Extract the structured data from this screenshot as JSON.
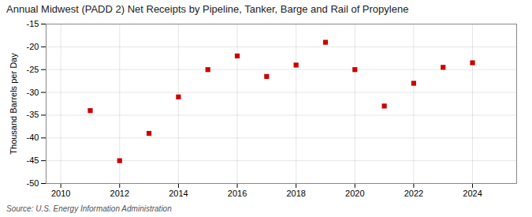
{
  "chart_data": {
    "type": "scatter",
    "title": "Annual Midwest (PADD 2) Net Receipts by Pipeline, Tanker, Barge and Rail of Propylene",
    "ylabel": "Thousand Barrels per Day",
    "annotations": [
      "Source: U.S. Energy Information Administration"
    ],
    "x": [
      2011,
      2012,
      2013,
      2014,
      2015,
      2016,
      2017,
      2018,
      2019,
      2020,
      2021,
      2022,
      2023,
      2024
    ],
    "values": [
      -34.0,
      -45.0,
      -39.0,
      -31.0,
      -25.0,
      -22.0,
      -26.5,
      -24.0,
      -19.0,
      -25.0,
      -33.0,
      -28.0,
      -24.5,
      -23.5
    ],
    "color": "#cc0000",
    "marker": "square",
    "xlim": [
      2009.5,
      2025.5
    ],
    "xticks": [
      2010,
      2012,
      2014,
      2016,
      2018,
      2020,
      2022,
      2024
    ],
    "ylim": [
      -50,
      -15
    ],
    "yticks": [
      -50,
      -45,
      -40,
      -35,
      -30,
      -25,
      -20,
      -15
    ],
    "grid": true
  }
}
